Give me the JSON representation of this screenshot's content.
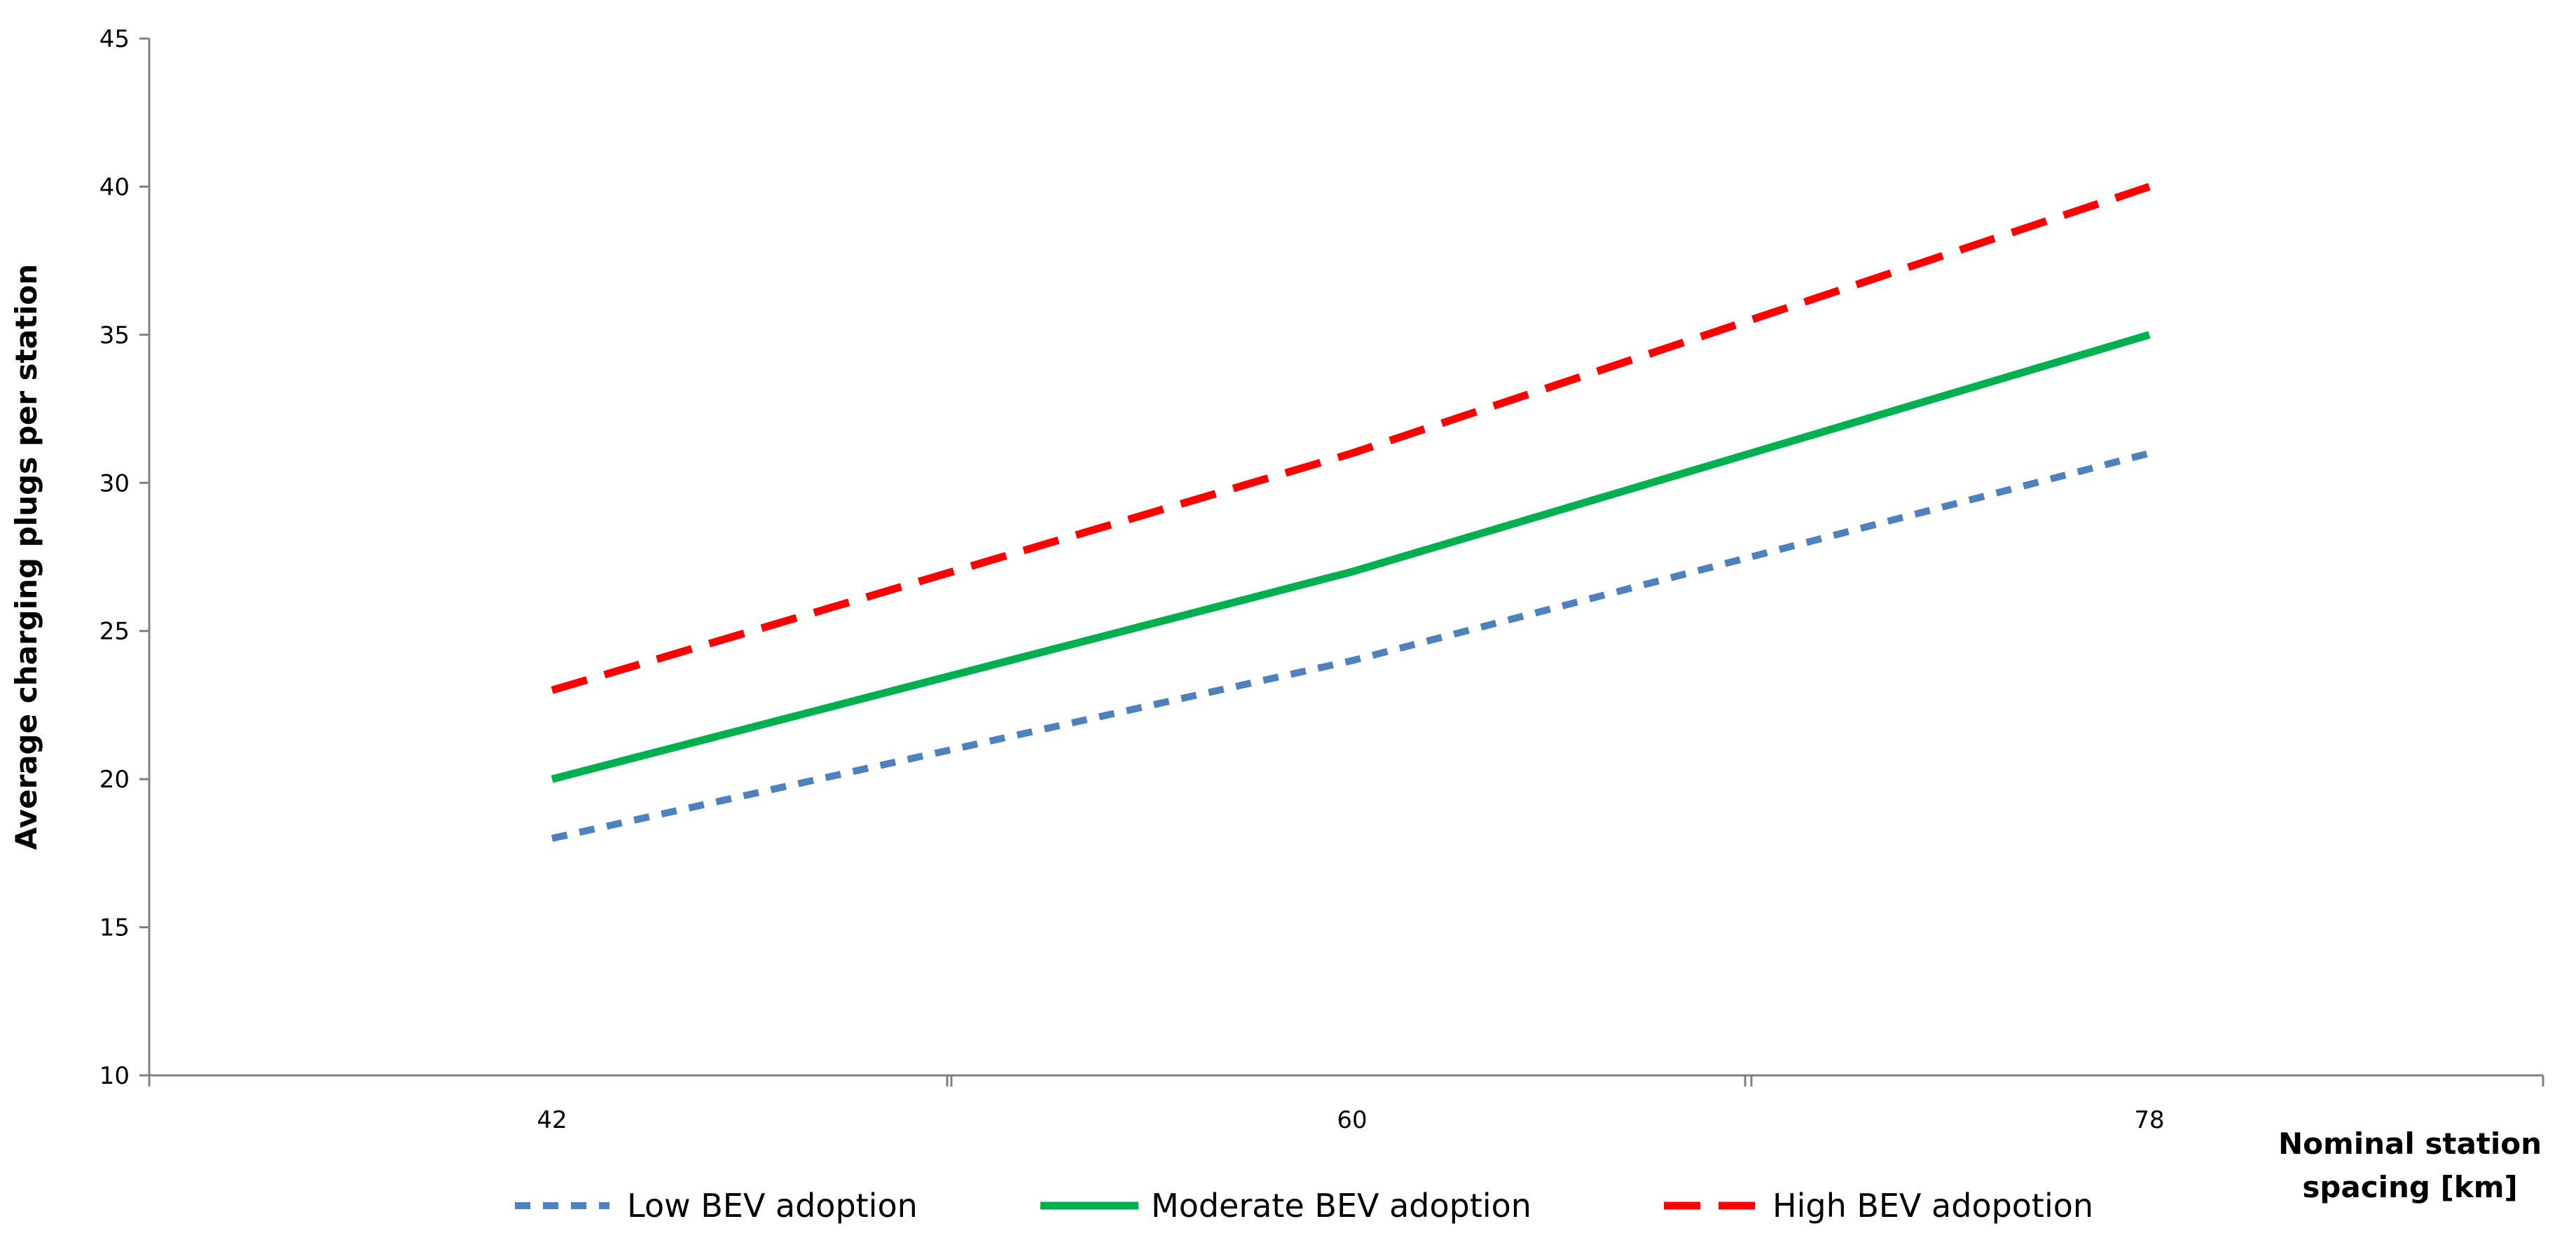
{
  "chart_data": {
    "type": "line",
    "title": "",
    "xlabel": "Nominal station spacing [km]",
    "xlabel_lines": [
      "Nominal station",
      "spacing [km]"
    ],
    "ylabel": "Average charging plugs per station",
    "categories": [
      "42",
      "60",
      "78"
    ],
    "x": [
      42,
      60,
      78
    ],
    "ylim": [
      10,
      45
    ],
    "yticks": [
      10,
      15,
      20,
      25,
      30,
      35,
      40,
      45
    ],
    "grid": false,
    "legend_position": "bottom",
    "series": [
      {
        "name": "Low BEV adoption",
        "values": [
          18,
          24,
          31
        ],
        "color": "#4F81BD",
        "style": "dashed"
      },
      {
        "name": "Moderate BEV adoption",
        "values": [
          20,
          27,
          35
        ],
        "color": "#00B050",
        "style": "solid"
      },
      {
        "name": "High BEV adopotion",
        "values": [
          23,
          31,
          40
        ],
        "color": "#FF0000",
        "style": "longdash"
      }
    ]
  }
}
